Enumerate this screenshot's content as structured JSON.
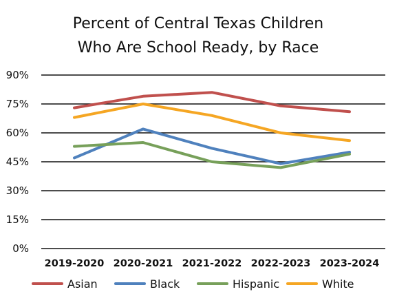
{
  "chart_data": {
    "type": "line",
    "title_lines": [
      "Percent of Central Texas Children",
      "Who Are School Ready, by Race"
    ],
    "categories": [
      "2019-2020",
      "2020-2021",
      "2021-2022",
      "2022-2023",
      "2023-2024"
    ],
    "y_ticks": [
      "0%",
      "15%",
      "30%",
      "45%",
      "60%",
      "75%",
      "90%"
    ],
    "ylim": [
      0,
      90
    ],
    "grid": true,
    "legend_position": "bottom",
    "series": [
      {
        "name": "Asian",
        "color": "#c0504d",
        "values": [
          73,
          79,
          81,
          74,
          71
        ]
      },
      {
        "name": "Black",
        "color": "#4f81bd",
        "values": [
          47,
          62,
          52,
          44,
          50
        ]
      },
      {
        "name": "Hispanic",
        "color": "#77a05a",
        "values": [
          53,
          55,
          45,
          42,
          49
        ]
      },
      {
        "name": "White",
        "color": "#f5a623",
        "values": [
          68,
          75,
          69,
          60,
          56
        ]
      }
    ]
  }
}
